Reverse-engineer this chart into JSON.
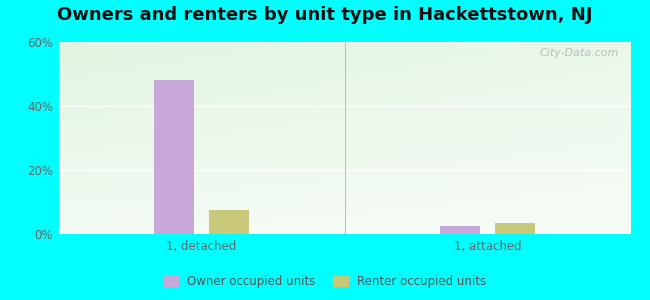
{
  "title": "Owners and renters by unit type in Hackettstown, NJ",
  "title_fontsize": 13,
  "background_color": "#00FFFF",
  "plot_bg_topleft": "#e8f5e0",
  "plot_bg_topright": "#f5faf0",
  "plot_bg_bottomleft": "#d8efd0",
  "plot_bg_bottomright": "#eef8e8",
  "categories": [
    "1, detached",
    "1, attached"
  ],
  "owner_values": [
    48,
    2.5
  ],
  "renter_values": [
    7.5,
    3.5
  ],
  "owner_color": "#c8a8d8",
  "renter_color": "#c8c87a",
  "ylim": [
    0,
    60
  ],
  "yticks": [
    0,
    20,
    40,
    60
  ],
  "ytick_labels": [
    "0%",
    "20%",
    "40%",
    "60%"
  ],
  "bar_width": 0.07,
  "group_centers": [
    0.25,
    0.75
  ],
  "legend_owner": "Owner occupied units",
  "legend_renter": "Renter occupied units",
  "watermark": "City-Data.com"
}
